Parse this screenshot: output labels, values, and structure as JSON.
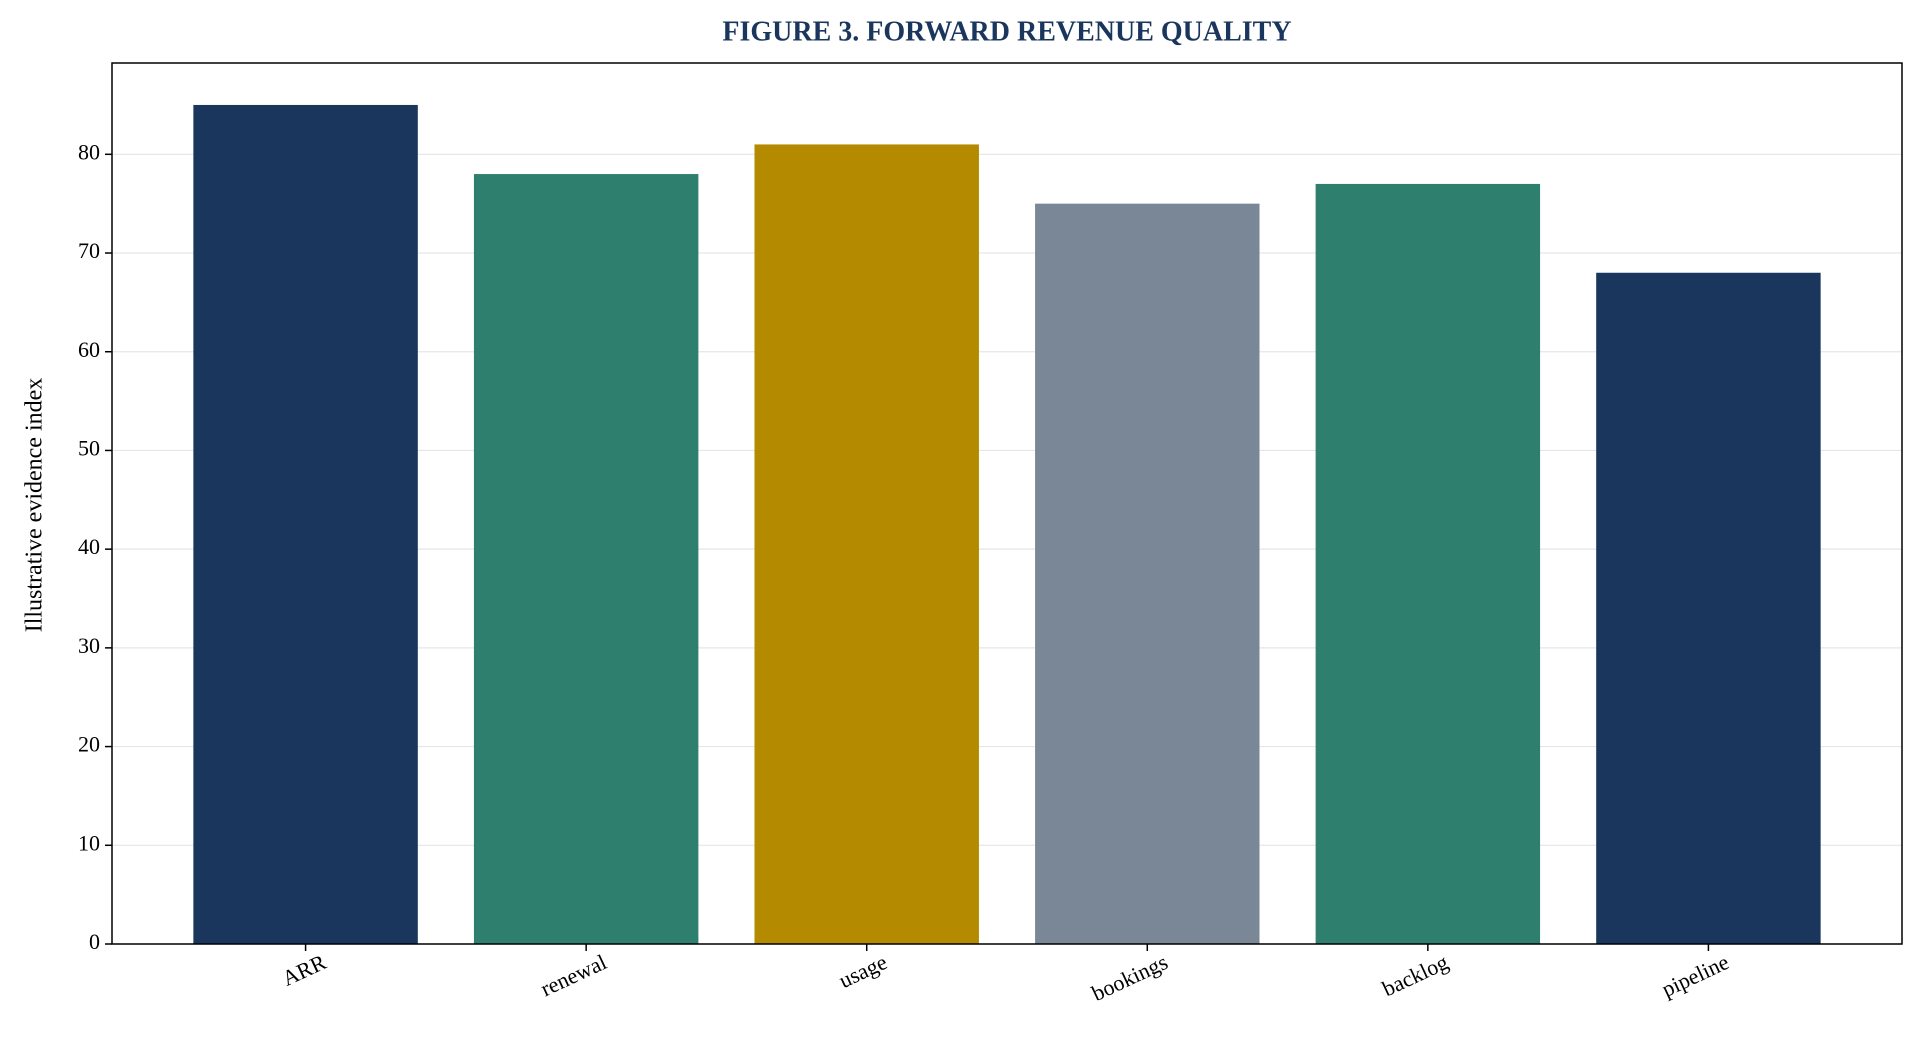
{
  "chart_data": {
    "type": "bar",
    "title": "FIGURE 3. FORWARD REVENUE QUALITY",
    "y_label": "Illustrative evidence index",
    "categories": [
      "ARR",
      "renewal",
      "usage",
      "bookings",
      "backlog",
      "pipeline"
    ],
    "values": [
      85,
      78,
      81,
      75,
      77,
      68
    ],
    "colors": [
      "#1a365d",
      "#2f7f6f",
      "#b38a00",
      "#7a8796",
      "#2f7f6f",
      "#1a365d"
    ],
    "ylim": [
      0,
      89.25
    ],
    "yticks": [
      0,
      10,
      20,
      30,
      40,
      50,
      60,
      70,
      80
    ],
    "grid": true
  }
}
